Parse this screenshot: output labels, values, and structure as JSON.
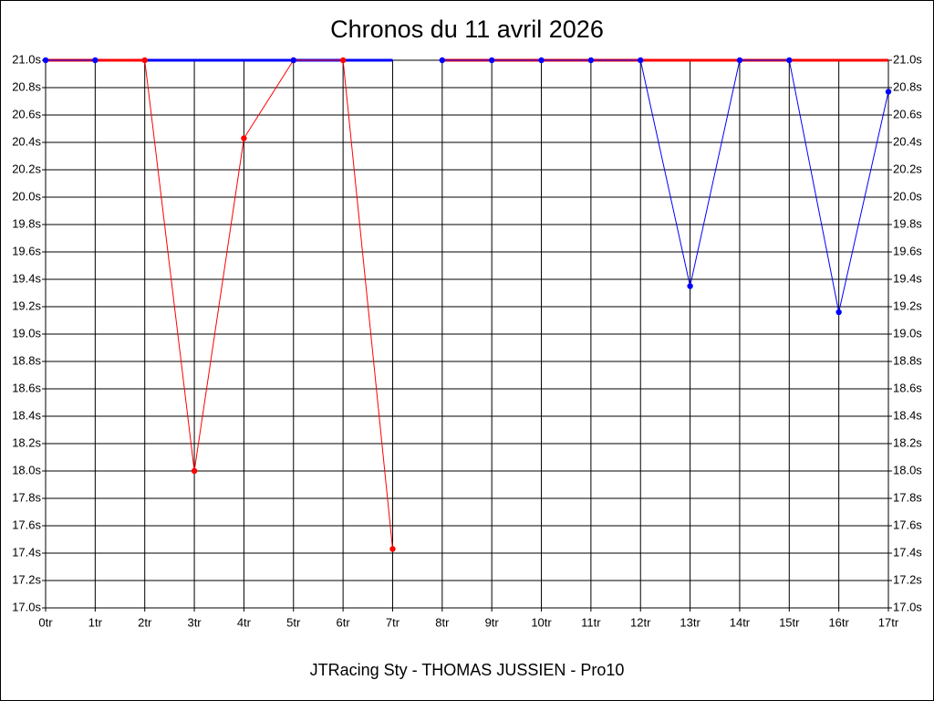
{
  "chart_data": {
    "type": "line",
    "title": "Chronos du 11 avril 2026",
    "x_label": "JTRacing Sty - THOMAS JUSSIEN - Pro10",
    "categories": [
      "0tr",
      "1tr",
      "2tr",
      "3tr",
      "4tr",
      "5tr",
      "6tr",
      "7tr",
      "8tr",
      "9tr",
      "10tr",
      "11tr",
      "12tr",
      "13tr",
      "14tr",
      "15tr",
      "16tr",
      "17tr"
    ],
    "ylim": [
      17.0,
      21.0
    ],
    "yticks": [
      {
        "value": 17.0,
        "label": "17.0s"
      },
      {
        "value": 17.2,
        "label": "17.2s"
      },
      {
        "value": 17.4,
        "label": "17.4s"
      },
      {
        "value": 17.6,
        "label": "17.6s"
      },
      {
        "value": 17.8,
        "label": "17.8s"
      },
      {
        "value": 18.0,
        "label": "18.0s"
      },
      {
        "value": 18.2,
        "label": "18.2s"
      },
      {
        "value": 18.4,
        "label": "18.4s"
      },
      {
        "value": 18.6,
        "label": "18.6s"
      },
      {
        "value": 18.8,
        "label": "18.8s"
      },
      {
        "value": 19.0,
        "label": "19.0s"
      },
      {
        "value": 19.2,
        "label": "19.2s"
      },
      {
        "value": 19.4,
        "label": "19.4s"
      },
      {
        "value": 19.6,
        "label": "19.6s"
      },
      {
        "value": 19.8,
        "label": "19.8s"
      },
      {
        "value": 20.0,
        "label": "20.0s"
      },
      {
        "value": 20.2,
        "label": "20.2s"
      },
      {
        "value": 20.4,
        "label": "20.4s"
      },
      {
        "value": 20.6,
        "label": "20.6s"
      },
      {
        "value": 20.8,
        "label": "20.8s"
      },
      {
        "value": 21.0,
        "label": "21.0s"
      }
    ],
    "grid": true,
    "series": [
      {
        "color": "#ff0000",
        "width": 3,
        "markers": false,
        "values": [
          21.0,
          21.0,
          21.0,
          null,
          null,
          null,
          null,
          null,
          21.0,
          21.0,
          21.0,
          21.0,
          21.0,
          21.0,
          21.0,
          21.0,
          21.0,
          21.0
        ]
      },
      {
        "color": "#0000ff",
        "width": 3,
        "markers": false,
        "values": [
          null,
          null,
          21.0,
          21.0,
          21.0,
          21.0,
          21.0,
          21.0,
          null,
          null,
          null,
          null,
          null,
          null,
          null,
          null,
          null,
          null
        ]
      },
      {
        "color": "#ff0000",
        "width": 1,
        "markers": true,
        "values": [
          null,
          null,
          21.0,
          18.0,
          20.43,
          21.0,
          21.0,
          17.43,
          null,
          null,
          null,
          null,
          null,
          null,
          null,
          null,
          null,
          null
        ]
      },
      {
        "color": "#0000ff",
        "width": 1,
        "markers": true,
        "values": [
          21.0,
          21.0,
          null,
          null,
          null,
          21.0,
          null,
          null,
          21.0,
          21.0,
          21.0,
          21.0,
          21.0,
          19.35,
          21.0,
          21.0,
          19.16,
          20.77
        ]
      }
    ]
  }
}
